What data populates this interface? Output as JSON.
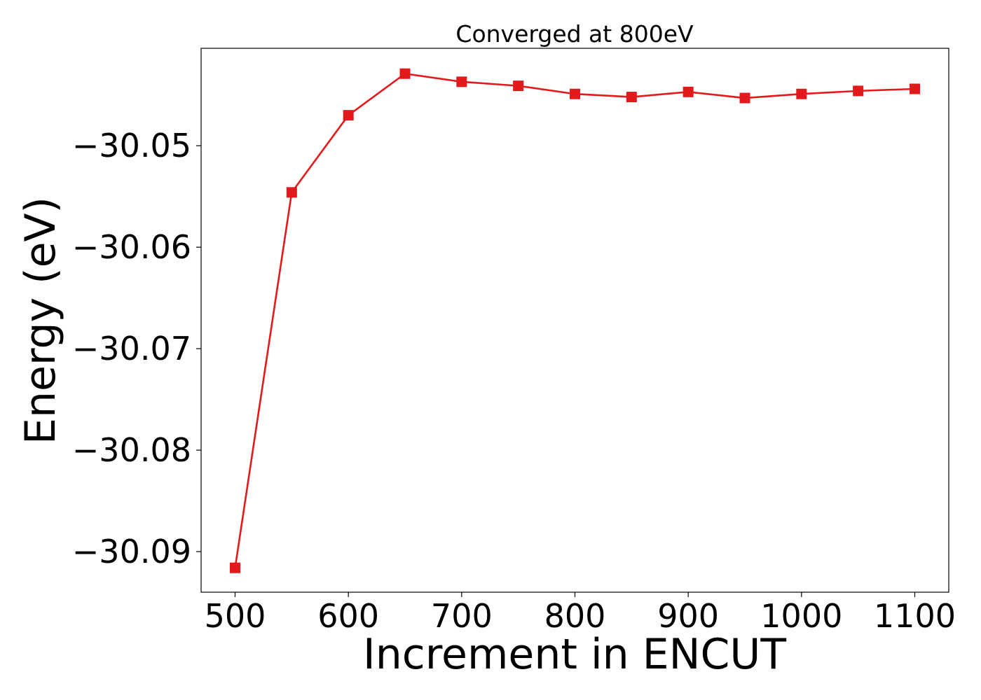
{
  "chart_data": {
    "type": "line",
    "title": "Converged at 800eV",
    "xlabel": "Increment in ENCUT",
    "ylabel": "Energy (eV)",
    "x": [
      500,
      550,
      600,
      650,
      700,
      750,
      800,
      850,
      900,
      950,
      1000,
      1050,
      1100
    ],
    "series": [
      {
        "values": [
          -30.0916,
          -30.0546,
          -30.047,
          -30.0429,
          -30.0437,
          -30.0441,
          -30.0449,
          -30.0452,
          -30.0447,
          -30.0453,
          -30.0449,
          -30.0446,
          -30.0444
        ],
        "color": "#e31a1c",
        "marker": "square"
      }
    ],
    "xlim": [
      470,
      1130
    ],
    "ylim": [
      -30.094,
      -30.0404
    ],
    "xticks": [
      500,
      600,
      700,
      800,
      900,
      1000,
      1100
    ],
    "xtick_labels": [
      "500",
      "600",
      "700",
      "800",
      "900",
      "1000",
      "1100"
    ],
    "yticks": [
      -30.09,
      -30.08,
      -30.07,
      -30.06,
      -30.05
    ],
    "ytick_labels": [
      "−30.09",
      "−30.08",
      "−30.07",
      "−30.06",
      "−30.05"
    ],
    "grid": false,
    "legend": false
  }
}
